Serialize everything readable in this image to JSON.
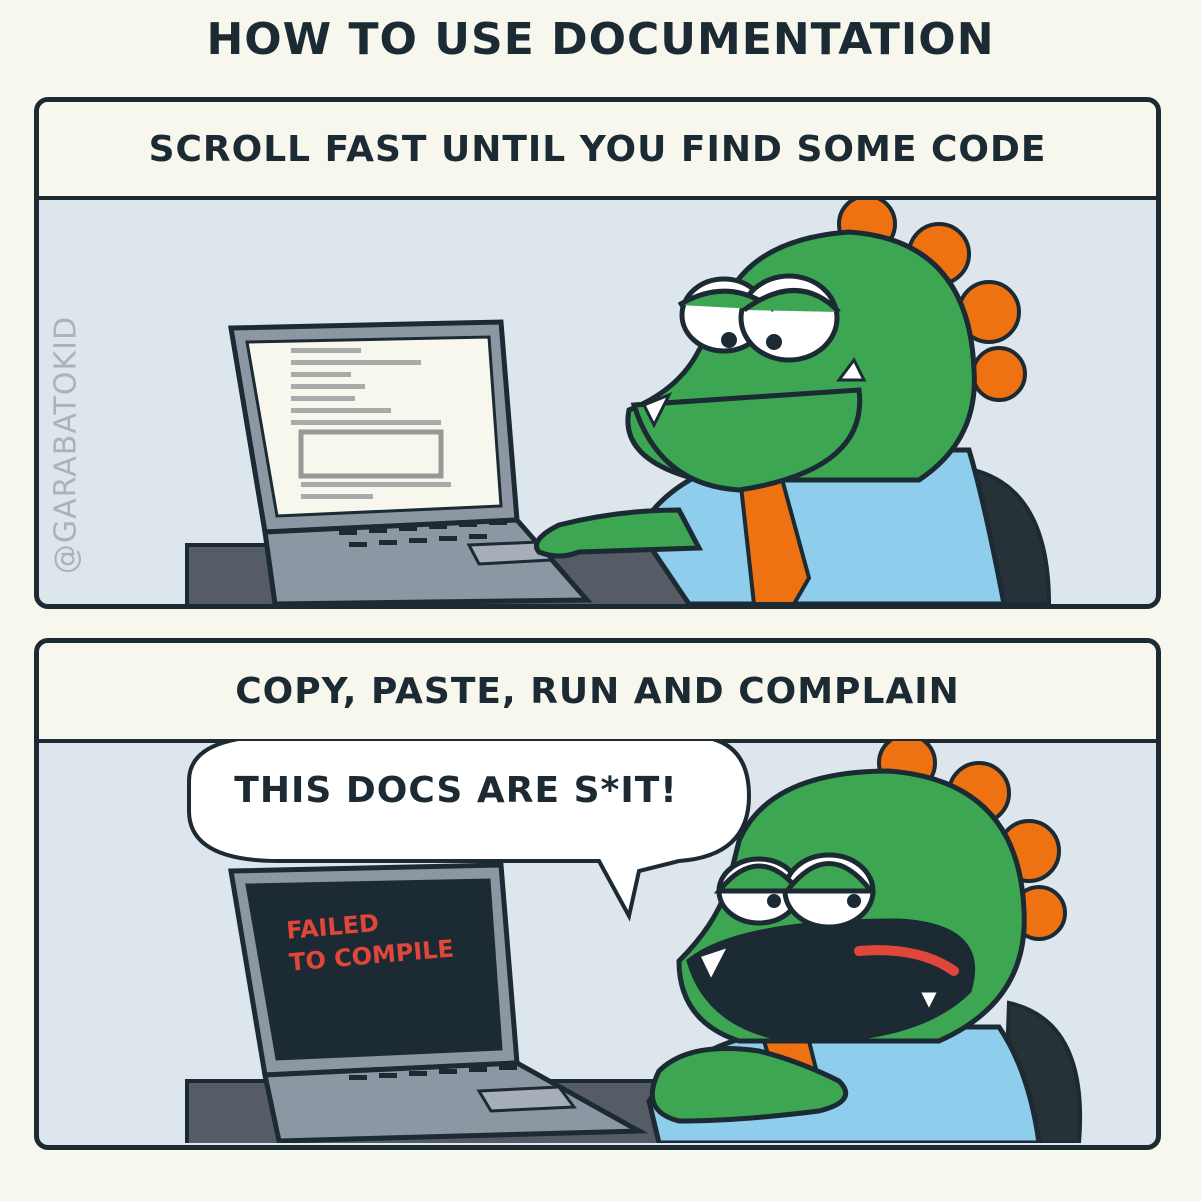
{
  "title": "HOW TO USE DOCUMENTATION",
  "watermark": "@GARABATOKID",
  "panels": [
    {
      "caption": "SCROLL FAST UNTIL YOU FIND SOME CODE"
    },
    {
      "caption": "COPY, PASTE, RUN AND COMPLAIN",
      "speech": "THIS DOCS ARE S*IT!",
      "screen_line_1": "FAILED",
      "screen_line_2": "TO COMPILE"
    }
  ],
  "colors": {
    "ink": "#1b2a33",
    "paper": "#f8f7ee",
    "panel_bg": "#dde6ec",
    "dino_green": "#3ca653",
    "spikes_orange": "#ee7212",
    "shirt_blue": "#8ecdec",
    "laptop_gray": "#8d97a4",
    "error_red": "#e0463a"
  }
}
